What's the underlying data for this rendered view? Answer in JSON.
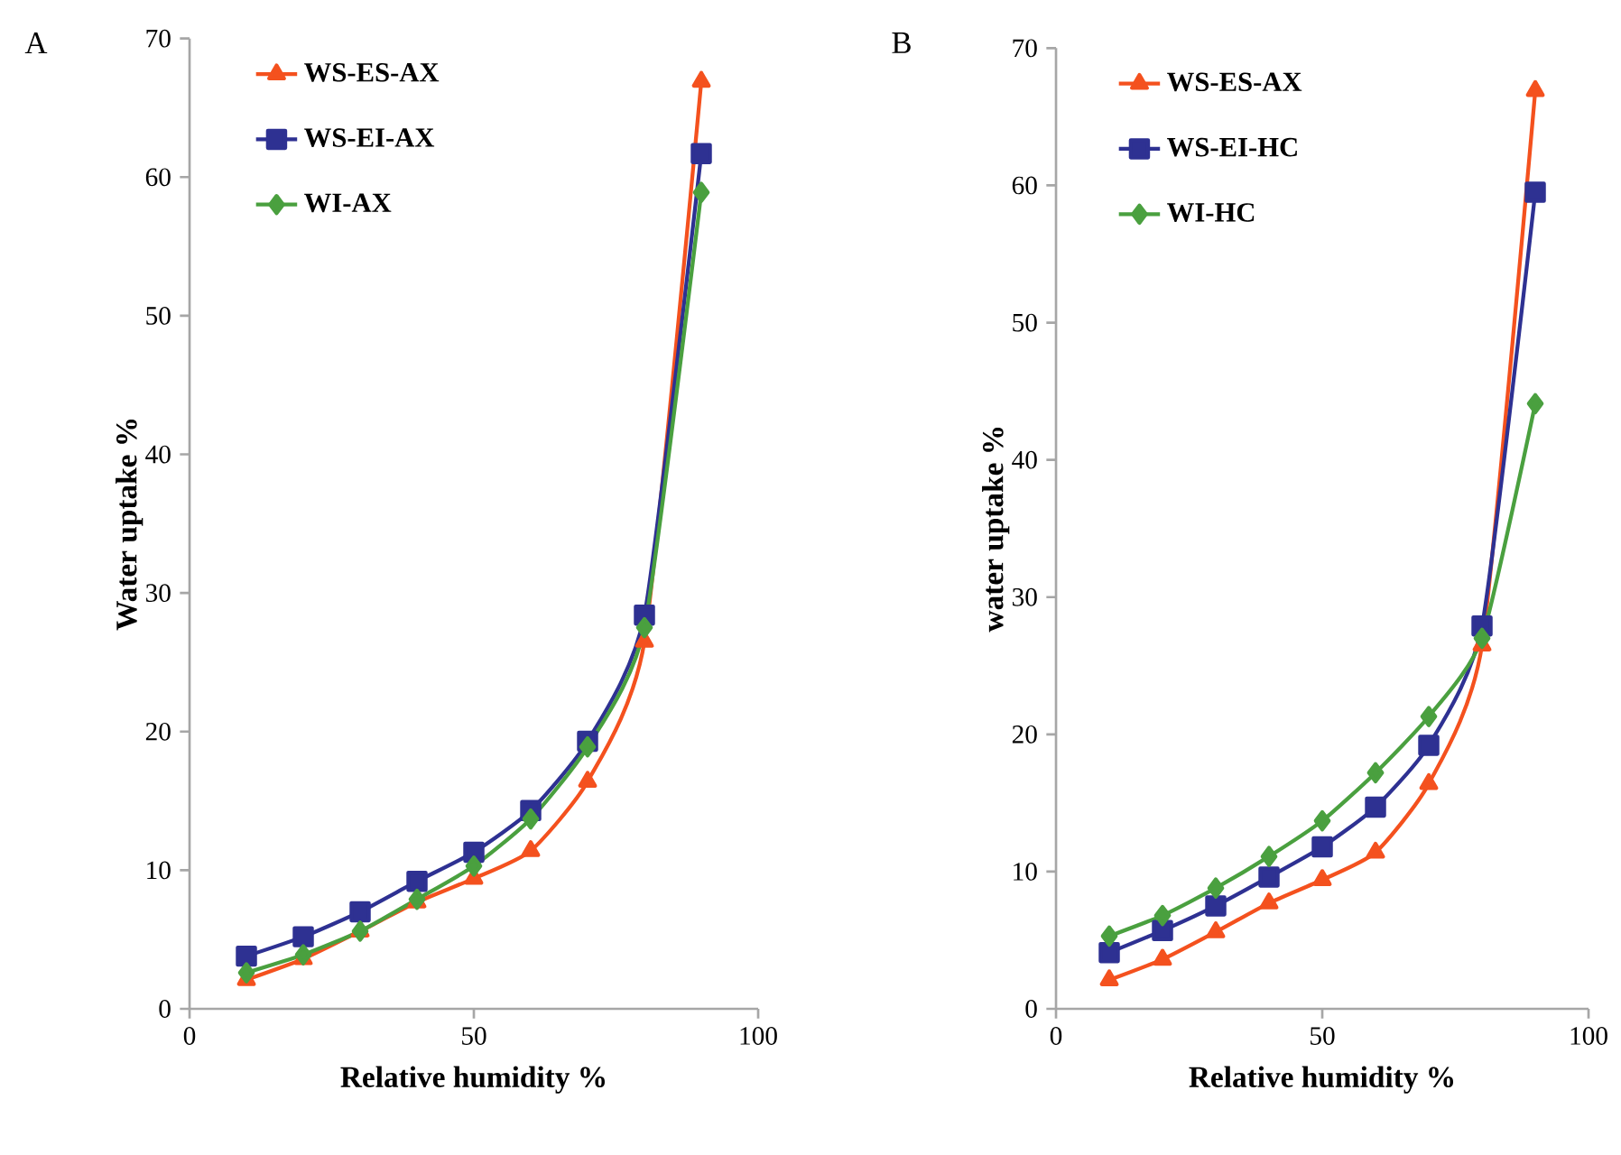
{
  "chart_data": [
    {
      "type": "line",
      "title": "A",
      "xlabel": "Relative humidity %",
      "ylabel": "Water uptake %",
      "x": [
        10,
        20,
        30,
        40,
        50,
        60,
        70,
        80,
        90
      ],
      "xlim": [
        0,
        100
      ],
      "xticks": [
        0,
        50,
        100
      ],
      "ylim": [
        0,
        70
      ],
      "yticks": [
        0,
        10,
        20,
        30,
        40,
        50,
        60,
        70
      ],
      "legend": "top left",
      "grid": false,
      "series": [
        {
          "name": "WS-ES-AX",
          "color": "#f4511e",
          "marker": "triangle",
          "values": [
            2.1,
            3.6,
            5.6,
            7.7,
            9.4,
            11.4,
            16.4,
            26.5,
            66.9
          ]
        },
        {
          "name": "WS-EI-AX",
          "color": "#2e3192",
          "marker": "square",
          "values": [
            3.8,
            5.2,
            7.0,
            9.2,
            11.3,
            14.3,
            19.3,
            28.4,
            61.7
          ]
        },
        {
          "name": "WI-AX",
          "color": "#4aa03f",
          "marker": "diamond",
          "values": [
            2.6,
            3.9,
            5.6,
            7.9,
            10.3,
            13.7,
            18.9,
            27.5,
            58.9
          ]
        }
      ]
    },
    {
      "type": "line",
      "title": "B",
      "xlabel": "Relative humidity %",
      "ylabel": "water uptake %",
      "x": [
        10,
        20,
        30,
        40,
        50,
        60,
        70,
        80,
        90
      ],
      "xlim": [
        0,
        100
      ],
      "xticks": [
        0,
        50,
        100
      ],
      "ylim": [
        0,
        70
      ],
      "yticks": [
        0,
        10,
        20,
        30,
        40,
        50,
        60,
        70
      ],
      "legend": "top left",
      "grid": false,
      "series": [
        {
          "name": "WS-ES-AX",
          "color": "#f4511e",
          "marker": "triangle",
          "values": [
            2.1,
            3.6,
            5.6,
            7.7,
            9.4,
            11.4,
            16.4,
            26.5,
            66.9
          ]
        },
        {
          "name": "WS-EI-HC",
          "color": "#2e3192",
          "marker": "square",
          "values": [
            4.1,
            5.7,
            7.5,
            9.6,
            11.8,
            14.7,
            19.2,
            27.9,
            59.5
          ]
        },
        {
          "name": "WI-HC",
          "color": "#4aa03f",
          "marker": "diamond",
          "values": [
            5.3,
            6.8,
            8.8,
            11.1,
            13.7,
            17.2,
            21.3,
            27.0,
            44.1
          ]
        }
      ]
    }
  ]
}
